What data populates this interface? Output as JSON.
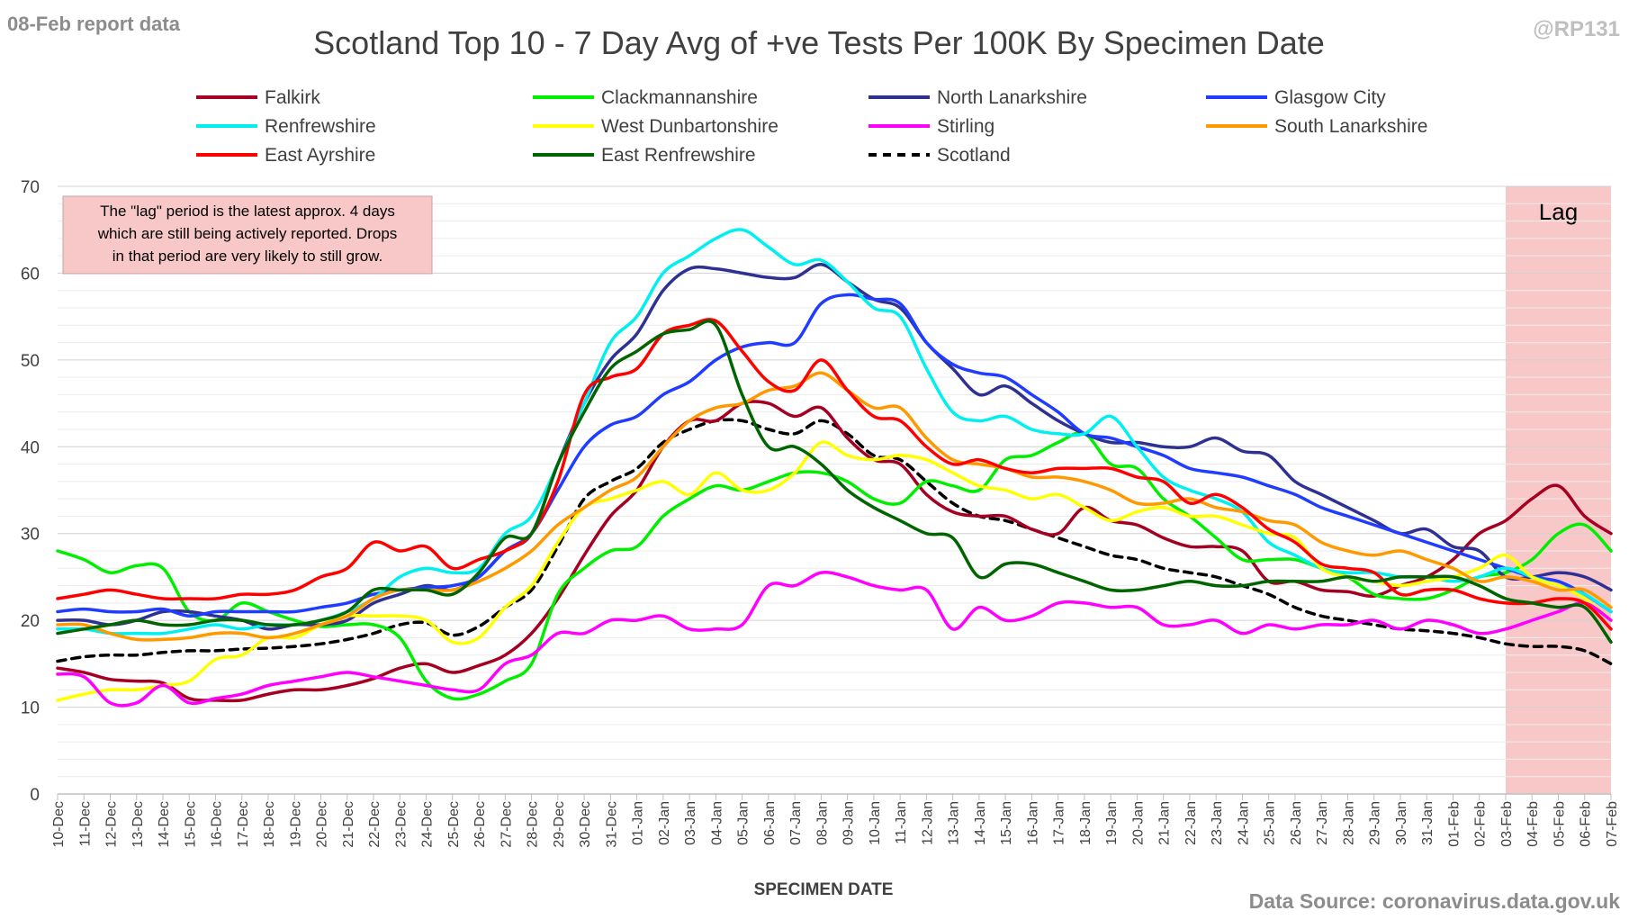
{
  "report_label": "08-Feb report data",
  "handle": "@RP131",
  "source": "Data Source: coronavirus.data.gov.uk",
  "lag_label": "Lag",
  "note_lines": [
    "The \"lag\" period is the latest approx. 4 days",
    "which are still being actively reported.  Drops",
    "in that period are very likely to still grow."
  ],
  "chart_data": {
    "type": "line",
    "title": "Scotland Top 10 - 7 Day Avg of +ve Tests Per 100K By Specimen Date",
    "xlabel": "SPECIMEN DATE",
    "ylabel": "",
    "ylim": [
      0,
      70
    ],
    "yticks": [
      0,
      10,
      20,
      30,
      40,
      50,
      60,
      70
    ],
    "grid": true,
    "legend_position": "top",
    "lag_range": [
      "03-Feb",
      "07-Feb"
    ],
    "categories": [
      "10-Dec",
      "11-Dec",
      "12-Dec",
      "13-Dec",
      "14-Dec",
      "15-Dec",
      "16-Dec",
      "17-Dec",
      "18-Dec",
      "19-Dec",
      "20-Dec",
      "21-Dec",
      "22-Dec",
      "23-Dec",
      "24-Dec",
      "25-Dec",
      "26-Dec",
      "27-Dec",
      "28-Dec",
      "29-Dec",
      "30-Dec",
      "31-Dec",
      "01-Jan",
      "02-Jan",
      "03-Jan",
      "04-Jan",
      "05-Jan",
      "06-Jan",
      "07-Jan",
      "08-Jan",
      "09-Jan",
      "10-Jan",
      "11-Jan",
      "12-Jan",
      "13-Jan",
      "14-Jan",
      "15-Jan",
      "16-Jan",
      "17-Jan",
      "18-Jan",
      "19-Jan",
      "20-Jan",
      "21-Jan",
      "22-Jan",
      "23-Jan",
      "24-Jan",
      "25-Jan",
      "26-Jan",
      "27-Jan",
      "28-Jan",
      "29-Jan",
      "30-Jan",
      "31-Jan",
      "01-Feb",
      "02-Feb",
      "03-Feb",
      "04-Feb",
      "05-Feb",
      "06-Feb",
      "07-Feb"
    ],
    "series": [
      {
        "name": "Falkirk",
        "color": "#a50021",
        "dashed": false,
        "values": [
          14.5,
          14,
          13.2,
          13,
          12.8,
          11,
          10.8,
          10.8,
          11.5,
          12,
          12,
          12.5,
          13.3,
          14.5,
          15,
          14,
          14.8,
          16,
          18.5,
          22.5,
          27.5,
          32,
          35,
          40,
          43,
          43,
          45,
          45,
          43.5,
          44.5,
          41,
          38.5,
          38,
          34.5,
          32.5,
          32,
          32,
          30.5,
          30,
          33,
          31.5,
          31,
          29.5,
          28.5,
          28.5,
          28,
          24.5,
          24.5,
          23.5,
          23.3,
          22.8,
          24,
          25,
          27,
          30,
          31.5,
          34,
          35.5,
          32,
          30
        ]
      },
      {
        "name": "Clackmannanshire",
        "color": "#00ee00",
        "dashed": false,
        "values": [
          28,
          27,
          25.5,
          26.3,
          26,
          21,
          20,
          22,
          21,
          20,
          19.3,
          19.5,
          19.5,
          18,
          13,
          11,
          11.5,
          13,
          15,
          23,
          26,
          28,
          28.5,
          32,
          34,
          35.5,
          35,
          36,
          37,
          37,
          36,
          34,
          33.5,
          36,
          35.5,
          35,
          38.5,
          39,
          40.5,
          41.5,
          38,
          37.5,
          34,
          32,
          29.5,
          27,
          27,
          27,
          26,
          25,
          23,
          22.5,
          22.5,
          23.5,
          25,
          25.5,
          27,
          30,
          31,
          28
        ]
      },
      {
        "name": "North Lanarkshire",
        "color": "#2e3192",
        "dashed": false,
        "values": [
          20,
          20,
          19.5,
          20,
          21,
          21,
          20.5,
          20,
          19,
          19.5,
          19.5,
          20,
          22,
          23,
          24,
          23.5,
          25,
          28,
          30,
          38,
          45,
          50,
          53,
          58,
          60.5,
          60.5,
          60,
          59.5,
          59.5,
          61,
          59,
          57,
          56,
          52,
          49,
          46,
          47,
          45,
          43,
          41.5,
          40.5,
          40.5,
          40,
          40,
          41,
          39.5,
          39,
          36,
          34.5,
          33,
          31.5,
          30,
          30.5,
          28.5,
          28,
          25,
          25,
          25.5,
          25,
          23.5
        ]
      },
      {
        "name": "Glasgow City",
        "color": "#1f3cff",
        "dashed": false,
        "values": [
          21,
          21.3,
          21,
          21,
          21.3,
          20.5,
          21,
          21,
          21,
          21,
          21.5,
          22,
          23,
          23.5,
          23.8,
          24,
          25,
          28,
          30,
          35,
          40,
          42.5,
          43.5,
          46,
          47.5,
          50,
          51.5,
          52,
          52,
          56.5,
          57.5,
          57,
          56.5,
          52,
          49.5,
          48.5,
          48,
          46,
          44,
          41.5,
          41,
          40,
          39,
          37.5,
          37,
          36.5,
          35.5,
          34.5,
          33,
          32,
          31,
          30,
          29,
          28,
          27,
          26,
          25,
          24.5,
          23,
          21
        ]
      },
      {
        "name": "Renfrewshire",
        "color": "#00f0f0",
        "dashed": false,
        "values": [
          19,
          19,
          18.5,
          18.5,
          18.5,
          19,
          19.5,
          19,
          19.5,
          19.5,
          20,
          21,
          22.5,
          25,
          26,
          25.5,
          26,
          30,
          32,
          38,
          45,
          52,
          55,
          60,
          62,
          64,
          65,
          63,
          61,
          61.5,
          59,
          56,
          55,
          49,
          44,
          43,
          43.5,
          42,
          41.5,
          41.5,
          43.5,
          40,
          36.5,
          35,
          34,
          32.5,
          29,
          27.5,
          26,
          25.5,
          25.5,
          25,
          25,
          24.5,
          25,
          26,
          25,
          24,
          23,
          21
        ]
      },
      {
        "name": "West Dunbartonshire",
        "color": "#ffff00",
        "dashed": false,
        "values": [
          10.8,
          11.5,
          12,
          12,
          12.5,
          13,
          15.5,
          16,
          18,
          18,
          19.5,
          20.5,
          20.5,
          20.5,
          20,
          17.5,
          18,
          21.5,
          24,
          29,
          33,
          34,
          35,
          36,
          34.5,
          37,
          35,
          35,
          37,
          40.5,
          39,
          38.5,
          39,
          38.5,
          37,
          35.5,
          35,
          34,
          34.5,
          33,
          31.5,
          32.5,
          33,
          32,
          32,
          31,
          30,
          29.5,
          26,
          25,
          24.5,
          24,
          24.5,
          25,
          26,
          27.5,
          25,
          24,
          22.5,
          20
        ]
      },
      {
        "name": "Stirling",
        "color": "#ff00ff",
        "dashed": false,
        "values": [
          13.8,
          13.5,
          10.5,
          10.5,
          12.5,
          10.5,
          11,
          11.5,
          12.5,
          13,
          13.5,
          14,
          13.5,
          13,
          12.5,
          12,
          12,
          15,
          16,
          18.5,
          18.5,
          20,
          20,
          20.5,
          19,
          19,
          19.5,
          24,
          24,
          25.5,
          25,
          24,
          23.5,
          23.5,
          19,
          21.5,
          20,
          20.5,
          22,
          22,
          21.5,
          21.5,
          19.5,
          19.5,
          20,
          18.5,
          19.5,
          19,
          19.5,
          19.5,
          20,
          19,
          20,
          19.5,
          18.5,
          19,
          20,
          21,
          22,
          20
        ]
      },
      {
        "name": "South Lanarkshire",
        "color": "#ff9900",
        "dashed": false,
        "values": [
          19.5,
          19.5,
          18.5,
          17.8,
          17.8,
          18,
          18.5,
          18.5,
          18,
          18.5,
          19.5,
          20.5,
          22.5,
          23.5,
          23.5,
          23.5,
          24.5,
          26,
          28,
          31,
          33,
          35,
          36.5,
          40,
          43,
          44.5,
          45,
          46.5,
          47,
          48.5,
          46.5,
          44.5,
          44.5,
          41,
          38.5,
          38,
          37.5,
          36.5,
          36.5,
          36,
          35,
          33.5,
          33.5,
          34,
          33,
          32.5,
          31.5,
          31,
          29,
          28,
          27.5,
          28,
          27,
          26,
          24.5,
          25,
          24.5,
          23.5,
          23.5,
          21.5
        ]
      },
      {
        "name": "East Ayrshire",
        "color": "#ff0000",
        "dashed": false,
        "values": [
          22.5,
          23,
          23.5,
          23,
          22.5,
          22.5,
          22.5,
          23,
          23,
          23.5,
          25,
          26,
          29,
          28,
          28.5,
          26,
          27,
          28,
          30,
          36,
          46,
          48,
          49,
          53,
          54,
          54.5,
          51,
          47.5,
          46.5,
          50,
          46.5,
          43.5,
          43,
          40,
          38,
          38.5,
          37.5,
          37,
          37.5,
          37.5,
          37.5,
          36.5,
          36,
          33.5,
          34.5,
          33,
          30.5,
          29,
          26.5,
          26,
          25.5,
          23,
          23.5,
          23.5,
          22.5,
          22,
          22,
          22.5,
          22,
          19
        ]
      },
      {
        "name": "East Renfrewshire",
        "color": "#006400",
        "dashed": false,
        "values": [
          18.5,
          19,
          19.5,
          20,
          19.5,
          19.5,
          20,
          20,
          19.5,
          19.5,
          20,
          21,
          23.5,
          23.5,
          23.5,
          23,
          25.5,
          29.5,
          30,
          38,
          44,
          49,
          51,
          53,
          53.5,
          54,
          46,
          40,
          40,
          38,
          35,
          33,
          31.5,
          30,
          29.5,
          25,
          26.5,
          26.5,
          25.5,
          24.5,
          23.5,
          23.5,
          24,
          24.5,
          24,
          24,
          24.5,
          24.5,
          24.5,
          25,
          24.5,
          25,
          25,
          25,
          24,
          22.5,
          22,
          21.5,
          21.5,
          17.5
        ]
      },
      {
        "name": "Scotland",
        "color": "#000000",
        "dashed": true,
        "values": [
          15.3,
          15.8,
          16,
          16,
          16.3,
          16.5,
          16.5,
          16.7,
          16.8,
          17,
          17.3,
          17.8,
          18.5,
          19.5,
          19.7,
          18.3,
          19.3,
          21.5,
          23.5,
          28.5,
          34,
          36,
          37.5,
          40.5,
          42,
          43,
          43,
          42,
          41.5,
          43,
          41.5,
          39,
          38.5,
          36,
          33.5,
          32,
          31.5,
          30.5,
          29.5,
          28.5,
          27.5,
          27,
          26,
          25.5,
          25,
          24,
          23,
          21.5,
          20.5,
          20,
          19.5,
          19,
          18.8,
          18.5,
          18,
          17.3,
          17,
          17,
          16.5,
          15
        ]
      }
    ]
  }
}
